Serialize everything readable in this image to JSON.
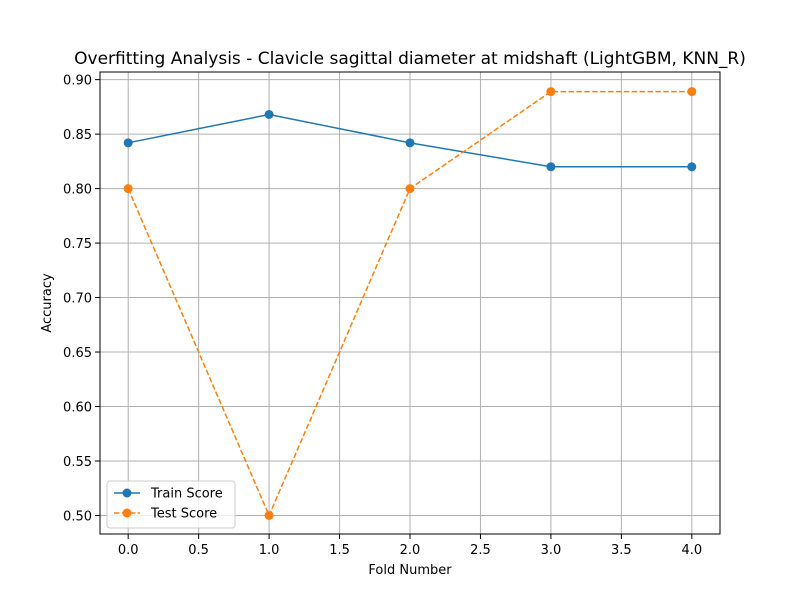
{
  "chart_data": {
    "type": "line",
    "title": "Overfitting Analysis - Clavicle sagittal diameter at midshaft (LightGBM, KNN_R)",
    "xlabel": "Fold Number",
    "ylabel": "Accuracy",
    "xlim": [
      -0.2,
      4.2
    ],
    "ylim": [
      0.483,
      0.907
    ],
    "xticks": [
      0.0,
      0.5,
      1.0,
      1.5,
      2.0,
      2.5,
      3.0,
      3.5,
      4.0
    ],
    "xtick_labels": [
      "0.0",
      "0.5",
      "1.0",
      "1.5",
      "2.0",
      "2.5",
      "3.0",
      "3.5",
      "4.0"
    ],
    "yticks": [
      0.5,
      0.55,
      0.6,
      0.65,
      0.7,
      0.75,
      0.8,
      0.85,
      0.9
    ],
    "ytick_labels": [
      "0.50",
      "0.55",
      "0.60",
      "0.65",
      "0.70",
      "0.75",
      "0.80",
      "0.85",
      "0.90"
    ],
    "grid": true,
    "legend_position": "lower-left",
    "x": [
      0,
      1,
      2,
      3,
      4
    ],
    "series": [
      {
        "name": "Train Score",
        "values": [
          0.842,
          0.868,
          0.842,
          0.82,
          0.82
        ],
        "color": "#1f77b4",
        "line_style": "solid",
        "marker": "circle"
      },
      {
        "name": "Test Score",
        "values": [
          0.8,
          0.5,
          0.8,
          0.889,
          0.889
        ],
        "color": "#ff7f0e",
        "line_style": "dashed",
        "marker": "circle"
      }
    ]
  }
}
